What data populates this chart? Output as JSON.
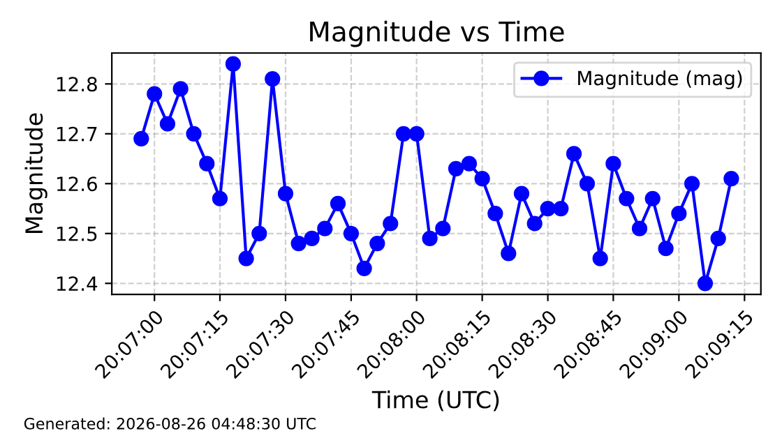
{
  "chart_data": {
    "type": "line",
    "title": "Magnitude vs Time",
    "xlabel": "Time (UTC)",
    "ylabel": "Magnitude",
    "x": [
      20.11583,
      20.11667,
      20.1175,
      20.11833,
      20.11917,
      20.12,
      20.12083,
      20.12167,
      20.1225,
      20.12333,
      20.12417,
      20.125,
      20.12583,
      20.12667,
      20.1275,
      20.12833,
      20.12917,
      20.13,
      20.13083,
      20.13167,
      20.1325,
      20.13333,
      20.13417,
      20.135,
      20.13583,
      20.13667,
      20.1375,
      20.13833,
      20.13917,
      20.14,
      20.14083,
      20.14167,
      20.1425,
      20.14333,
      20.14417,
      20.145,
      20.14583,
      20.14667,
      20.1475,
      20.14833,
      20.14917,
      20.15,
      20.15083,
      20.15167,
      20.1525,
      20.15333
    ],
    "series": [
      {
        "name": "Magnitude (mag)",
        "color": "#0000ff",
        "values": [
          12.69,
          12.78,
          12.72,
          12.79,
          12.7,
          12.64,
          12.57,
          12.84,
          12.45,
          12.5,
          12.81,
          12.58,
          12.48,
          12.49,
          12.51,
          12.56,
          12.5,
          12.43,
          12.48,
          12.52,
          12.7,
          12.7,
          12.49,
          12.51,
          12.63,
          12.64,
          12.61,
          12.54,
          12.46,
          12.58,
          12.52,
          12.55,
          12.55,
          12.66,
          12.6,
          12.45,
          12.64,
          12.57,
          12.51,
          12.57,
          12.47,
          12.54,
          12.6,
          12.4,
          12.49,
          12.61
        ]
      }
    ],
    "xlim": [
      20.11396,
      20.15521
    ],
    "xticks": [
      {
        "value": 20.11667,
        "label": "20:07:00"
      },
      {
        "value": 20.12083,
        "label": "20:07:15"
      },
      {
        "value": 20.125,
        "label": "20:07:30"
      },
      {
        "value": 20.12917,
        "label": "20:07:45"
      },
      {
        "value": 20.13333,
        "label": "20:08:00"
      },
      {
        "value": 20.1375,
        "label": "20:08:15"
      },
      {
        "value": 20.14167,
        "label": "20:08:30"
      },
      {
        "value": 20.14583,
        "label": "20:08:45"
      },
      {
        "value": 20.15,
        "label": "20:09:00"
      },
      {
        "value": 20.15417,
        "label": "20:09:15"
      }
    ],
    "ylim": [
      12.378,
      12.862
    ],
    "yticks": [
      12.4,
      12.5,
      12.6,
      12.7,
      12.8
    ],
    "grid": true,
    "legend": "top right",
    "marker": "circle",
    "line_style": "solid",
    "annotations": [
      "Generated: 2026-08-26 04:48:30 UTC"
    ]
  }
}
